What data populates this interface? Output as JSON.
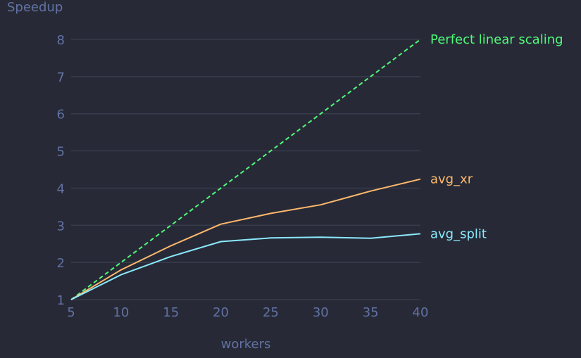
{
  "chart_data": {
    "type": "line",
    "xlabel": "workers",
    "ylabel": "Speedup",
    "x": [
      5,
      10,
      15,
      20,
      25,
      30,
      35,
      40
    ],
    "xlim": [
      5,
      40
    ],
    "ylim": [
      1,
      8.5
    ],
    "xticks": [
      5,
      10,
      15,
      20,
      25,
      30,
      35,
      40
    ],
    "yticks": [
      1,
      2,
      3,
      4,
      5,
      6,
      7,
      8
    ],
    "grid": "horizontal",
    "legend": "inline labels at right end of each line",
    "series": [
      {
        "name": "Perfect linear scaling",
        "values": [
          1,
          2,
          3,
          4,
          5,
          6,
          7,
          8
        ],
        "color": "#50fa7b",
        "style": "dashed"
      },
      {
        "name": "avg_xr",
        "values": [
          1,
          1.8,
          2.45,
          3.03,
          3.32,
          3.55,
          3.92,
          4.24
        ],
        "color": "#ffb86c",
        "style": "solid"
      },
      {
        "name": "avg_split",
        "values": [
          1,
          1.67,
          2.16,
          2.56,
          2.66,
          2.68,
          2.65,
          2.77
        ],
        "color": "#8be9fd",
        "style": "solid"
      }
    ]
  },
  "colors": {
    "background": "#272a36",
    "grid": "#3b3f51",
    "axis_text": "#6272a4"
  }
}
